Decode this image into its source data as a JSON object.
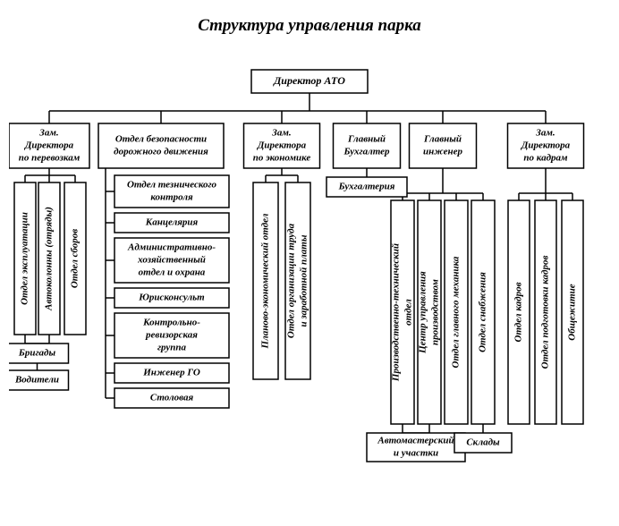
{
  "title": "Структура управления парка",
  "style": {
    "background_color": "#ffffff",
    "stroke_color": "#000000",
    "stroke_width": 1.5,
    "font_family": "Times New Roman",
    "font_style": "italic",
    "font_weight": "bold",
    "title_fontsize": 19,
    "node_fontsize": 12,
    "small_fontsize": 11
  },
  "diagram": {
    "type": "tree",
    "root": "Директор АТО",
    "branches": [
      {
        "label_lines": [
          "Зам.",
          "Директора",
          "по перевозкам"
        ],
        "children_vertical": [
          "Отдел эксплуатации",
          "Автоколонны (отряды)",
          "Отдел сборов"
        ],
        "sub_stack": [
          "Бригады",
          "Водители"
        ]
      },
      {
        "label_lines": [
          "Отдел безопасности",
          "дорожного движения"
        ],
        "children_stack": [
          [
            "Отдел тезнического",
            "контроля"
          ],
          [
            "Канцелярия"
          ],
          [
            "Административно-",
            "хозяйственный",
            "отдел и охрана"
          ],
          [
            "Юрисконсульт"
          ],
          [
            "Контрольно-",
            "ревизорская",
            "группа"
          ],
          [
            "Инженер ГО"
          ],
          [
            "Столовая"
          ]
        ]
      },
      {
        "label_lines": [
          "Зам.",
          "Директора",
          "по экономике"
        ],
        "children_vertical": [
          "Планово-экономический отдел",
          "Отдел организации труда и заработной платы"
        ]
      },
      {
        "label_lines": [
          "Главный",
          "Бухгалтер"
        ],
        "children_stack": [
          [
            "Бухгалтерия"
          ]
        ]
      },
      {
        "label_lines": [
          "Главный",
          "инженер"
        ],
        "children_vertical": [
          "Производственно-технический отдел",
          "Центр управления производством",
          "Отдел главного механика",
          "Отдел снабжения"
        ],
        "sub_stack_left": [
          "Автомастерский и участки"
        ],
        "sub_stack_right": [
          "Склады"
        ]
      },
      {
        "label_lines": [
          "Зам.",
          "Директора",
          "по кадрам"
        ],
        "children_vertical": [
          "Отдел кадров",
          "Отдел подготовки кадров",
          "Общежитие"
        ]
      }
    ]
  }
}
